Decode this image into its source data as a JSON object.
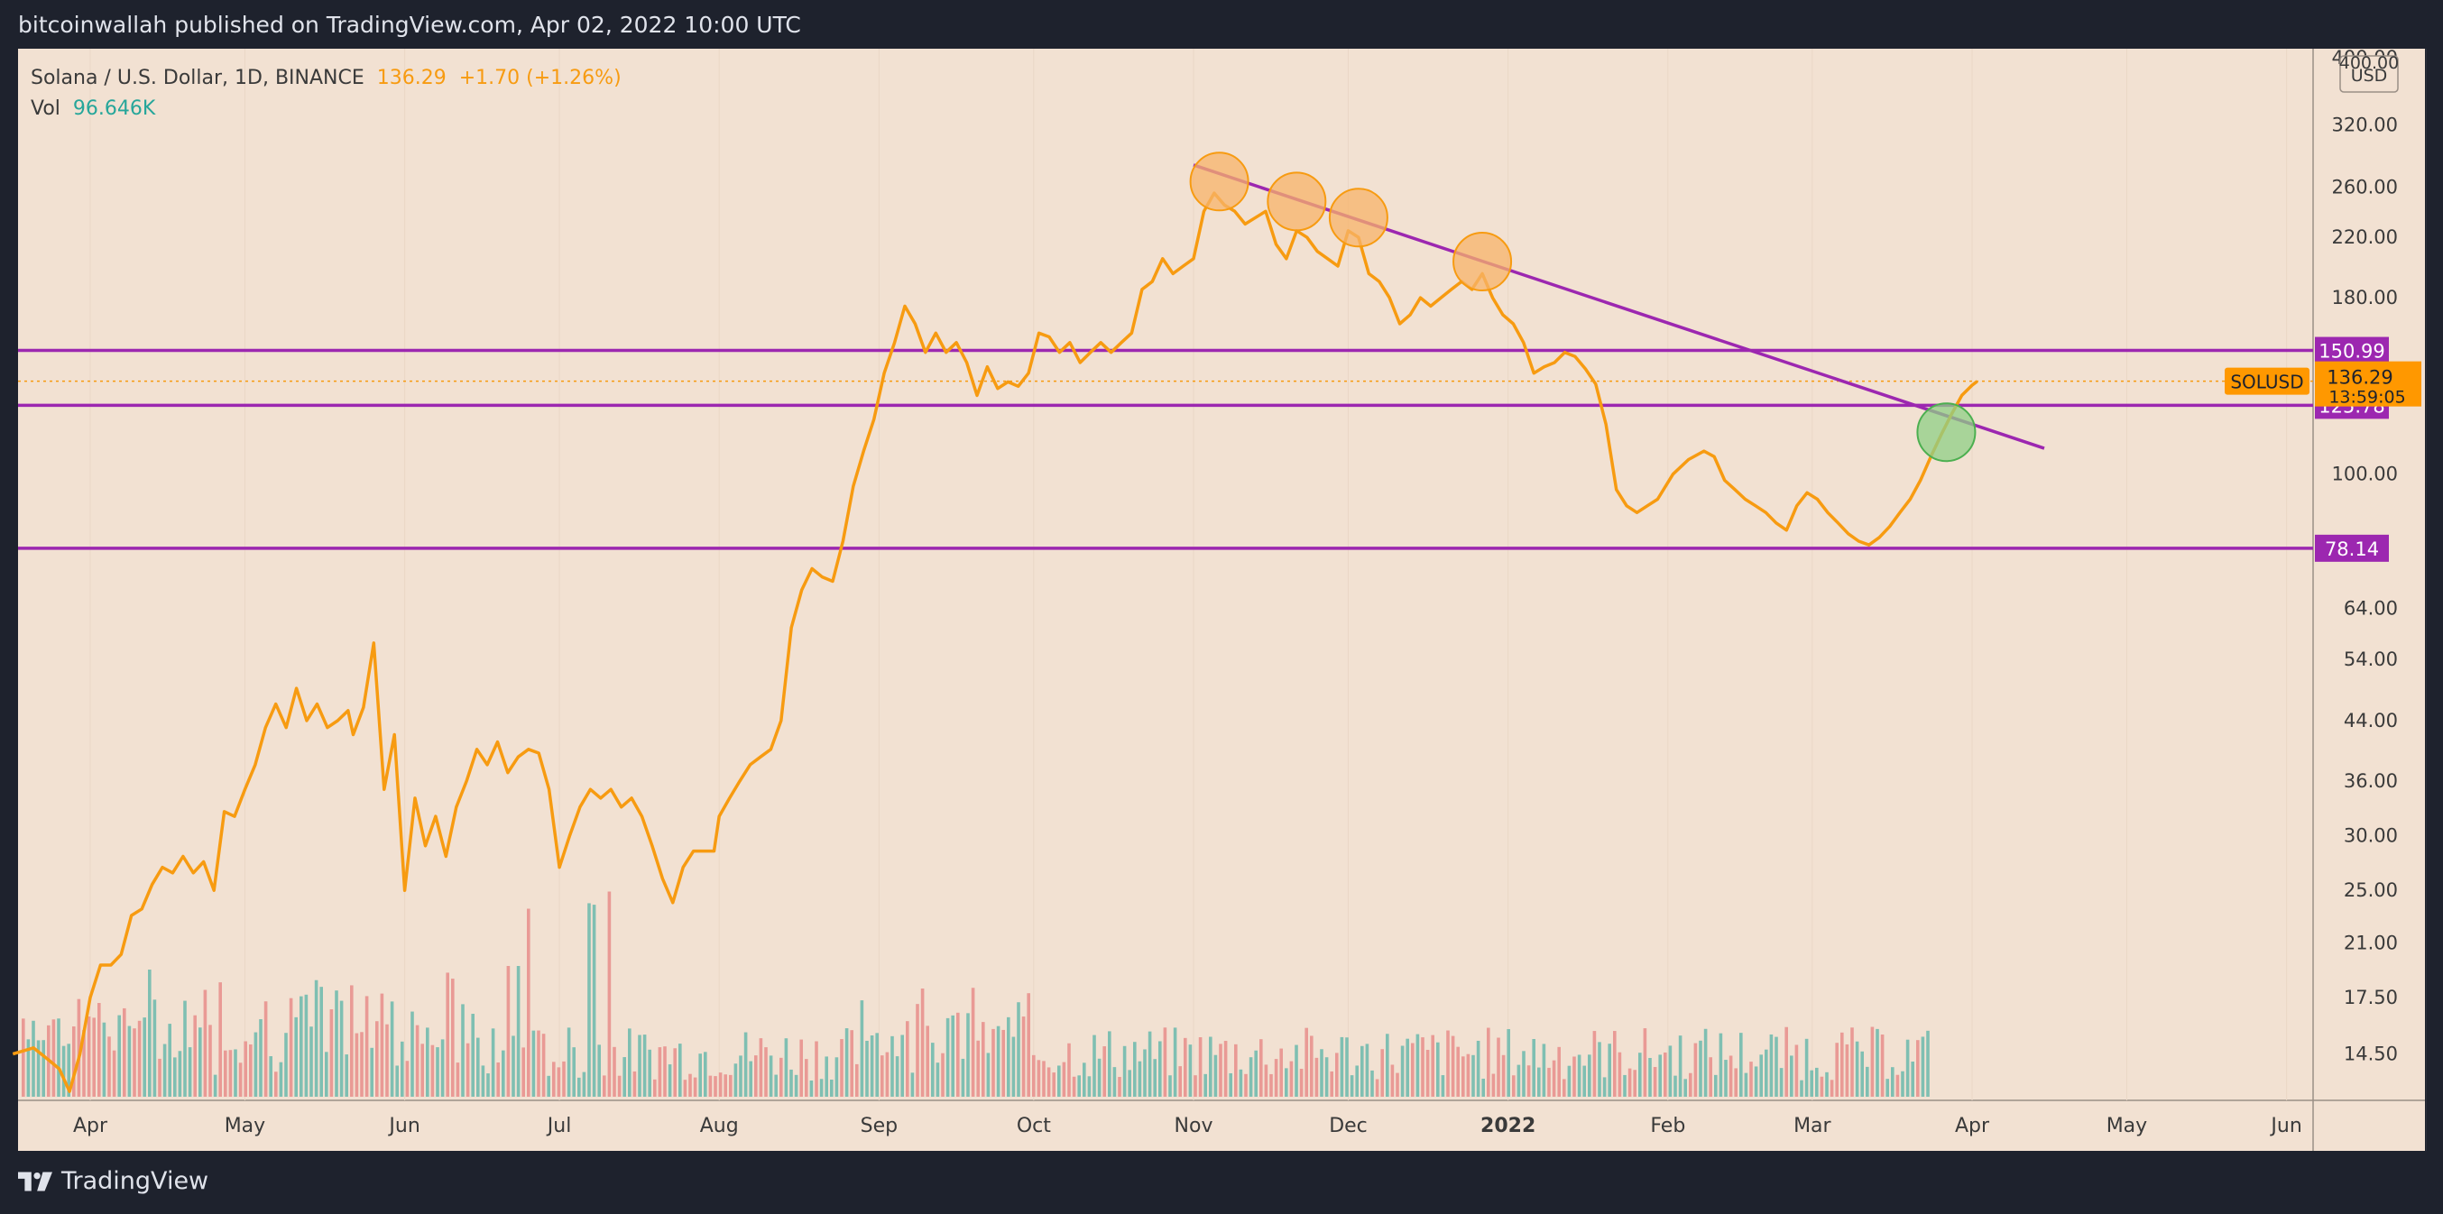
{
  "header": {
    "published": "bitcoinwallah published on TradingView.com, Apr 02, 2022 10:00 UTC"
  },
  "footer": {
    "brand": "TradingView"
  },
  "legend": {
    "symbol": "Solana / U.S. Dollar, 1D, BINANCE",
    "price": "136.29",
    "change": "+1.70 (+1.26%)",
    "vol_label": "Vol",
    "vol_value": "96.646K"
  },
  "colors": {
    "bg": "#f2e1d2",
    "price_line": "#f79b11",
    "level_line": "#9c27b0",
    "vol_up": "#7fbfb2",
    "vol_down": "#e99a95",
    "circle_orange": "#f7b36a",
    "circle_green": "#8fcf85"
  },
  "chart_data": {
    "type": "line",
    "title": "Solana / U.S. Dollar, 1D, BINANCE",
    "scale": "log",
    "ylim": [
      12.5,
      410
    ],
    "y_ticks": [
      400,
      320,
      260,
      220,
      180,
      100,
      64,
      54,
      44,
      36,
      30,
      25,
      21,
      17.5,
      14.5
    ],
    "y_axis_unit": "USD",
    "x_ticks": [
      {
        "label": "Apr",
        "date": "2021-04-01"
      },
      {
        "label": "May",
        "date": "2021-05-01"
      },
      {
        "label": "Jun",
        "date": "2021-06-01"
      },
      {
        "label": "Jul",
        "date": "2021-07-01"
      },
      {
        "label": "Aug",
        "date": "2021-08-01"
      },
      {
        "label": "Sep",
        "date": "2021-09-01"
      },
      {
        "label": "Oct",
        "date": "2021-10-01"
      },
      {
        "label": "Nov",
        "date": "2021-11-01"
      },
      {
        "label": "Dec",
        "date": "2021-12-01"
      },
      {
        "label": "2022",
        "date": "2022-01-01"
      },
      {
        "label": "Feb",
        "date": "2022-02-01"
      },
      {
        "label": "Mar",
        "date": "2022-03-01"
      },
      {
        "label": "Apr",
        "date": "2022-04-01"
      },
      {
        "label": "May",
        "date": "2022-05-01"
      },
      {
        "label": "Jun",
        "date": "2022-06-01"
      }
    ],
    "series": [
      {
        "name": "SOLUSD",
        "points": [
          [
            "2021-03-17",
            14.5
          ],
          [
            "2021-03-21",
            14.8
          ],
          [
            "2021-03-24",
            14.2
          ],
          [
            "2021-03-26",
            13.8
          ],
          [
            "2021-03-28",
            12.8
          ],
          [
            "2021-03-30",
            14.5
          ],
          [
            "2021-04-01",
            17.5
          ],
          [
            "2021-04-03",
            19.5
          ],
          [
            "2021-04-05",
            19.5
          ],
          [
            "2021-04-07",
            20.2
          ],
          [
            "2021-04-09",
            23
          ],
          [
            "2021-04-11",
            23.5
          ],
          [
            "2021-04-13",
            25.5
          ],
          [
            "2021-04-15",
            27
          ],
          [
            "2021-04-17",
            26.5
          ],
          [
            "2021-04-19",
            28
          ],
          [
            "2021-04-21",
            26.5
          ],
          [
            "2021-04-23",
            27.5
          ],
          [
            "2021-04-25",
            25
          ],
          [
            "2021-04-27",
            32.5
          ],
          [
            "2021-04-29",
            32
          ],
          [
            "2021-05-01",
            35
          ],
          [
            "2021-05-03",
            38
          ],
          [
            "2021-05-05",
            43
          ],
          [
            "2021-05-07",
            46.5
          ],
          [
            "2021-05-09",
            43
          ],
          [
            "2021-05-11",
            49
          ],
          [
            "2021-05-13",
            44
          ],
          [
            "2021-05-15",
            46.5
          ],
          [
            "2021-05-17",
            43
          ],
          [
            "2021-05-19",
            44
          ],
          [
            "2021-05-21",
            45.5
          ],
          [
            "2021-05-22",
            42
          ],
          [
            "2021-05-24",
            46
          ],
          [
            "2021-05-26",
            57
          ],
          [
            "2021-05-28",
            35
          ],
          [
            "2021-05-30",
            42
          ],
          [
            "2021-06-01",
            25
          ],
          [
            "2021-06-03",
            34
          ],
          [
            "2021-06-05",
            29
          ],
          [
            "2021-06-07",
            32
          ],
          [
            "2021-06-09",
            28
          ],
          [
            "2021-06-11",
            33
          ],
          [
            "2021-06-13",
            36
          ],
          [
            "2021-06-15",
            40
          ],
          [
            "2021-06-17",
            38
          ],
          [
            "2021-06-19",
            41
          ],
          [
            "2021-06-21",
            37
          ],
          [
            "2021-06-23",
            39
          ],
          [
            "2021-06-25",
            40
          ],
          [
            "2021-06-27",
            39.5
          ],
          [
            "2021-06-29",
            35
          ],
          [
            "2021-07-01",
            27
          ],
          [
            "2021-07-03",
            30
          ],
          [
            "2021-07-05",
            33
          ],
          [
            "2021-07-07",
            35
          ],
          [
            "2021-07-09",
            34
          ],
          [
            "2021-07-11",
            35
          ],
          [
            "2021-07-13",
            33
          ],
          [
            "2021-07-15",
            34
          ],
          [
            "2021-07-17",
            32
          ],
          [
            "2021-07-19",
            29
          ],
          [
            "2021-07-21",
            26
          ],
          [
            "2021-07-23",
            24
          ],
          [
            "2021-07-25",
            27
          ],
          [
            "2021-07-27",
            28.5
          ],
          [
            "2021-07-29",
            28.5
          ],
          [
            "2021-07-31",
            28.5
          ],
          [
            "2021-08-01",
            32
          ],
          [
            "2021-08-03",
            34
          ],
          [
            "2021-08-05",
            36
          ],
          [
            "2021-08-07",
            38
          ],
          [
            "2021-08-09",
            39
          ],
          [
            "2021-08-11",
            40
          ],
          [
            "2021-08-13",
            44
          ],
          [
            "2021-08-15",
            60
          ],
          [
            "2021-08-17",
            68
          ],
          [
            "2021-08-19",
            73
          ],
          [
            "2021-08-21",
            71
          ],
          [
            "2021-08-23",
            70
          ],
          [
            "2021-08-25",
            80
          ],
          [
            "2021-08-27",
            96
          ],
          [
            "2021-08-29",
            108
          ],
          [
            "2021-08-31",
            120
          ],
          [
            "2021-09-02",
            140
          ],
          [
            "2021-09-04",
            155
          ],
          [
            "2021-09-06",
            175
          ],
          [
            "2021-09-08",
            165
          ],
          [
            "2021-09-10",
            150
          ],
          [
            "2021-09-12",
            160
          ],
          [
            "2021-09-14",
            150
          ],
          [
            "2021-09-16",
            155
          ],
          [
            "2021-09-18",
            145
          ],
          [
            "2021-09-20",
            130
          ],
          [
            "2021-09-22",
            143
          ],
          [
            "2021-09-24",
            133
          ],
          [
            "2021-09-26",
            136
          ],
          [
            "2021-09-28",
            134
          ],
          [
            "2021-09-30",
            140
          ],
          [
            "2021-10-02",
            160
          ],
          [
            "2021-10-04",
            158
          ],
          [
            "2021-10-06",
            150
          ],
          [
            "2021-10-08",
            155
          ],
          [
            "2021-10-10",
            145
          ],
          [
            "2021-10-12",
            150
          ],
          [
            "2021-10-14",
            155
          ],
          [
            "2021-10-16",
            150
          ],
          [
            "2021-10-18",
            155
          ],
          [
            "2021-10-20",
            160
          ],
          [
            "2021-10-22",
            185
          ],
          [
            "2021-10-24",
            190
          ],
          [
            "2021-10-26",
            205
          ],
          [
            "2021-10-28",
            195
          ],
          [
            "2021-10-30",
            200
          ],
          [
            "2021-11-01",
            205
          ],
          [
            "2021-11-03",
            240
          ],
          [
            "2021-11-05",
            255
          ],
          [
            "2021-11-07",
            245
          ],
          [
            "2021-11-09",
            240
          ],
          [
            "2021-11-11",
            230
          ],
          [
            "2021-11-13",
            235
          ],
          [
            "2021-11-15",
            240
          ],
          [
            "2021-11-17",
            215
          ],
          [
            "2021-11-19",
            205
          ],
          [
            "2021-11-21",
            225
          ],
          [
            "2021-11-23",
            220
          ],
          [
            "2021-11-25",
            210
          ],
          [
            "2021-11-27",
            205
          ],
          [
            "2021-11-29",
            200
          ],
          [
            "2021-12-01",
            225
          ],
          [
            "2021-12-03",
            220
          ],
          [
            "2021-12-05",
            195
          ],
          [
            "2021-12-07",
            190
          ],
          [
            "2021-12-09",
            180
          ],
          [
            "2021-12-11",
            165
          ],
          [
            "2021-12-13",
            170
          ],
          [
            "2021-12-15",
            180
          ],
          [
            "2021-12-17",
            175
          ],
          [
            "2021-12-19",
            180
          ],
          [
            "2021-12-21",
            185
          ],
          [
            "2021-12-23",
            190
          ],
          [
            "2021-12-25",
            185
          ],
          [
            "2021-12-27",
            195
          ],
          [
            "2021-12-29",
            180
          ],
          [
            "2021-12-31",
            170
          ],
          [
            "2022-01-02",
            165
          ],
          [
            "2022-01-04",
            155
          ],
          [
            "2022-01-06",
            140
          ],
          [
            "2022-01-08",
            143
          ],
          [
            "2022-01-10",
            145
          ],
          [
            "2022-01-12",
            150
          ],
          [
            "2022-01-14",
            148
          ],
          [
            "2022-01-16",
            142
          ],
          [
            "2022-01-18",
            135
          ],
          [
            "2022-01-20",
            118
          ],
          [
            "2022-01-22",
            95
          ],
          [
            "2022-01-24",
            90
          ],
          [
            "2022-01-26",
            88
          ],
          [
            "2022-01-28",
            90
          ],
          [
            "2022-01-30",
            92
          ],
          [
            "2022-02-02",
            100
          ],
          [
            "2022-02-05",
            105
          ],
          [
            "2022-02-08",
            108
          ],
          [
            "2022-02-10",
            106
          ],
          [
            "2022-02-12",
            98
          ],
          [
            "2022-02-14",
            95
          ],
          [
            "2022-02-16",
            92
          ],
          [
            "2022-02-18",
            90
          ],
          [
            "2022-02-20",
            88
          ],
          [
            "2022-02-22",
            85
          ],
          [
            "2022-02-24",
            83
          ],
          [
            "2022-02-26",
            90
          ],
          [
            "2022-02-28",
            94
          ],
          [
            "2022-03-02",
            92
          ],
          [
            "2022-03-04",
            88
          ],
          [
            "2022-03-06",
            85
          ],
          [
            "2022-03-08",
            82
          ],
          [
            "2022-03-10",
            80
          ],
          [
            "2022-03-12",
            79
          ],
          [
            "2022-03-14",
            81
          ],
          [
            "2022-03-16",
            84
          ],
          [
            "2022-03-18",
            88
          ],
          [
            "2022-03-20",
            92
          ],
          [
            "2022-03-22",
            98
          ],
          [
            "2022-03-24",
            106
          ],
          [
            "2022-03-26",
            114
          ],
          [
            "2022-03-28",
            122
          ],
          [
            "2022-03-30",
            130
          ],
          [
            "2022-04-01",
            134.5
          ],
          [
            "2022-04-02",
            136.29
          ]
        ]
      }
    ],
    "horizontal_levels": [
      150.99,
      125.78,
      78.14
    ],
    "last_price": {
      "symbol": "SOLUSD",
      "value": "136.29",
      "countdown": "13:59:05"
    },
    "axis_labels": {
      "unit_top": "400.00",
      "unit": "USD"
    },
    "trendline": {
      "from": [
        "2021-11-01",
        280
      ],
      "to": [
        "2022-04-15",
        109
      ]
    },
    "annotations": [
      {
        "shape": "circle",
        "color": "orange",
        "at": [
          "2021-11-06",
          265
        ]
      },
      {
        "shape": "circle",
        "color": "orange",
        "at": [
          "2021-11-21",
          248
        ]
      },
      {
        "shape": "circle",
        "color": "orange",
        "at": [
          "2021-12-03",
          235
        ]
      },
      {
        "shape": "circle",
        "color": "orange",
        "at": [
          "2021-12-27",
          203
        ]
      },
      {
        "shape": "circle",
        "color": "green",
        "at": [
          "2022-03-27",
          115
        ]
      }
    ],
    "volume": {
      "label": "Vol",
      "last": "96.646K"
    }
  }
}
